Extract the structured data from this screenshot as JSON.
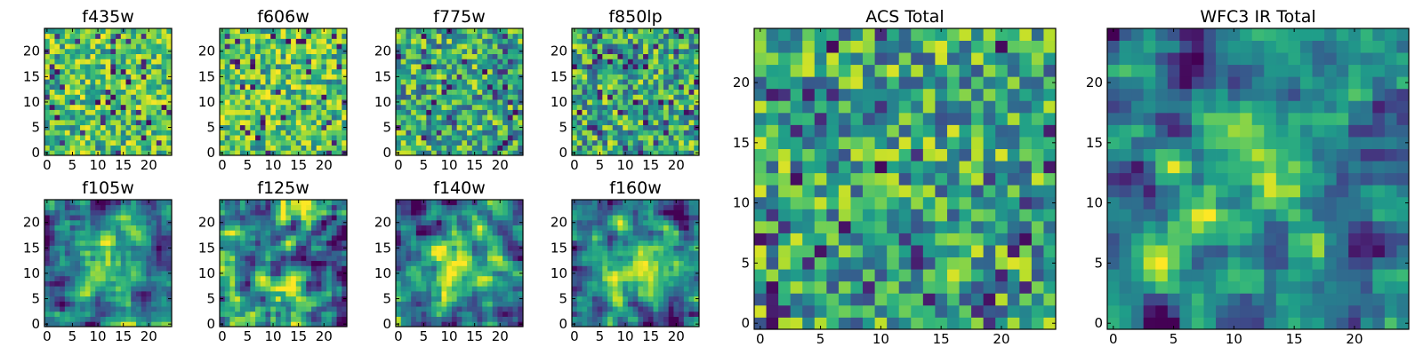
{
  "colormap": "viridis",
  "colors": {
    "frame": "#000000",
    "background": "#ffffff"
  },
  "chart_data": [
    {
      "id": "f435w",
      "type": "heatmap",
      "title": "f435w",
      "grid": false,
      "xlim": [
        -0.5,
        24.5
      ],
      "ylim": [
        -0.5,
        24.5
      ],
      "xticks": [
        0,
        5,
        10,
        15,
        20
      ],
      "yticks": [
        0,
        5,
        10,
        15,
        20
      ],
      "rows": 25,
      "cols": 25,
      "dominant": "yellow-green"
    },
    {
      "id": "f606w",
      "type": "heatmap",
      "title": "f606w",
      "grid": false,
      "xlim": [
        -0.5,
        24.5
      ],
      "ylim": [
        -0.5,
        24.5
      ],
      "xticks": [
        0,
        5,
        10,
        15,
        20
      ],
      "yticks": [
        0,
        5,
        10,
        15,
        20
      ],
      "rows": 25,
      "cols": 25,
      "dominant": "yellow-green"
    },
    {
      "id": "f775w",
      "type": "heatmap",
      "title": "f775w",
      "grid": false,
      "xlim": [
        -0.5,
        24.5
      ],
      "ylim": [
        -0.5,
        24.5
      ],
      "xticks": [
        0,
        5,
        10,
        15,
        20
      ],
      "yticks": [
        0,
        5,
        10,
        15,
        20
      ],
      "rows": 25,
      "cols": 25,
      "dominant": "green"
    },
    {
      "id": "f850lp",
      "type": "heatmap",
      "title": "f850lp",
      "grid": false,
      "xlim": [
        -0.5,
        24.5
      ],
      "ylim": [
        -0.5,
        24.5
      ],
      "xticks": [
        0,
        5,
        10,
        15,
        20
      ],
      "yticks": [
        0,
        5,
        10,
        15,
        20
      ],
      "rows": 25,
      "cols": 25,
      "dominant": "green"
    },
    {
      "id": "f105w",
      "type": "heatmap",
      "title": "f105w",
      "grid": false,
      "xlim": [
        -0.5,
        24.5
      ],
      "ylim": [
        -0.5,
        24.5
      ],
      "xticks": [
        0,
        5,
        10,
        15,
        20
      ],
      "yticks": [
        0,
        5,
        10,
        15,
        20
      ],
      "rows": 25,
      "cols": 25,
      "dominant": "smooth-center"
    },
    {
      "id": "f125w",
      "type": "heatmap",
      "title": "f125w",
      "grid": false,
      "xlim": [
        -0.5,
        24.5
      ],
      "ylim": [
        -0.5,
        24.5
      ],
      "xticks": [
        0,
        5,
        10,
        15,
        20
      ],
      "yticks": [
        0,
        5,
        10,
        15,
        20
      ],
      "rows": 25,
      "cols": 25,
      "dominant": "smooth"
    },
    {
      "id": "f140w",
      "type": "heatmap",
      "title": "f140w",
      "grid": false,
      "xlim": [
        -0.5,
        24.5
      ],
      "ylim": [
        -0.5,
        24.5
      ],
      "xticks": [
        0,
        5,
        10,
        15,
        20
      ],
      "yticks": [
        0,
        5,
        10,
        15,
        20
      ],
      "rows": 25,
      "cols": 25,
      "dominant": "smooth-center"
    },
    {
      "id": "f160w",
      "type": "heatmap",
      "title": "f160w",
      "grid": false,
      "xlim": [
        -0.5,
        24.5
      ],
      "ylim": [
        -0.5,
        24.5
      ],
      "xticks": [
        0,
        5,
        10,
        15,
        20
      ],
      "yticks": [
        0,
        5,
        10,
        15,
        20
      ],
      "rows": 25,
      "cols": 25,
      "dominant": "smooth-center"
    },
    {
      "id": "acs-total",
      "type": "heatmap",
      "title": "ACS Total",
      "grid": false,
      "xlim": [
        -0.5,
        24.5
      ],
      "ylim": [
        -0.5,
        24.5
      ],
      "xticks": [
        0,
        5,
        10,
        15,
        20
      ],
      "yticks": [
        0,
        5,
        10,
        15,
        20
      ],
      "rows": 25,
      "cols": 25,
      "dominant": "green"
    },
    {
      "id": "wfc3-ir-total",
      "type": "heatmap",
      "title": "WFC3 IR Total",
      "grid": false,
      "xlim": [
        -0.5,
        24.5
      ],
      "ylim": [
        -0.5,
        24.5
      ],
      "xticks": [
        0,
        5,
        10,
        15,
        20
      ],
      "yticks": [
        0,
        5,
        10,
        15,
        20
      ],
      "rows": 25,
      "cols": 25,
      "dominant": "smooth-center"
    }
  ]
}
